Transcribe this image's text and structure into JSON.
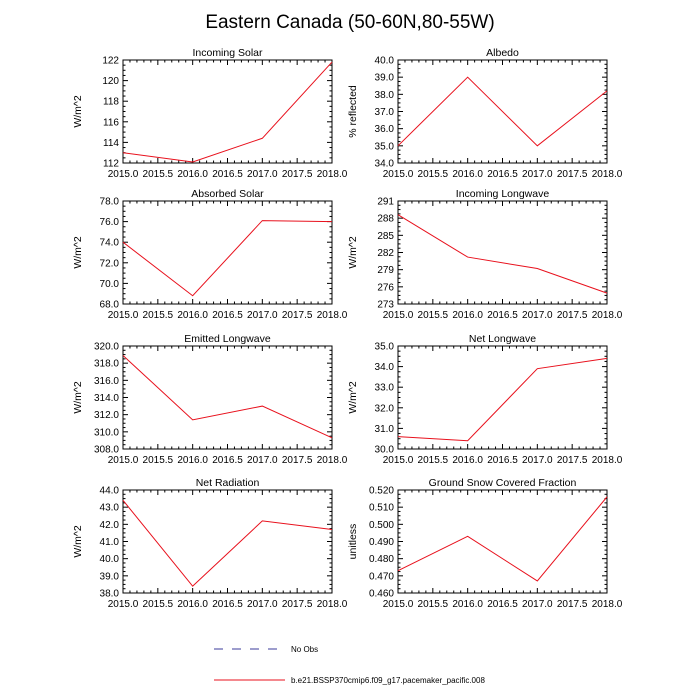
{
  "figure": {
    "title": "Eastern Canada (50-60N,80-55W)"
  },
  "legend": {
    "obs_label": "No Obs",
    "obs_color": "#3b3b9b",
    "model_label": "b.e21.BSSP370cmip6.f09_g17.pacemaker_pacific.008",
    "model_color": "#e8101c"
  },
  "chart_data": [
    {
      "type": "line",
      "title": "Incoming Solar",
      "ylabel": "W/m^2",
      "x": [
        2015,
        2016,
        2017,
        2018
      ],
      "values": [
        113.0,
        112.1,
        114.4,
        121.8
      ],
      "xlim": [
        2015,
        2018
      ],
      "ylim": [
        112,
        122
      ],
      "yticks": [
        "112",
        "114",
        "116",
        "118",
        "120",
        "122"
      ],
      "xticks": [
        "2015.0",
        "2015.5",
        "2016.0",
        "2016.5",
        "2017.0",
        "2017.5",
        "2018.0"
      ]
    },
    {
      "type": "line",
      "title": "Albedo",
      "ylabel": "% reflected",
      "x": [
        2015,
        2016,
        2017,
        2018
      ],
      "values": [
        35.0,
        39.0,
        35.0,
        38.2
      ],
      "xlim": [
        2015,
        2018
      ],
      "ylim": [
        34,
        40
      ],
      "yticks": [
        "34.0",
        "35.0",
        "36.0",
        "37.0",
        "38.0",
        "39.0",
        "40.0"
      ],
      "xticks": [
        "2015.0",
        "2015.5",
        "2016.0",
        "2016.5",
        "2017.0",
        "2017.5",
        "2018.0"
      ]
    },
    {
      "type": "line",
      "title": "Absorbed Solar",
      "ylabel": "W/m^2",
      "x": [
        2015,
        2016,
        2017,
        2018
      ],
      "values": [
        74.0,
        68.8,
        76.1,
        76.0
      ],
      "xlim": [
        2015,
        2018
      ],
      "ylim": [
        68,
        78
      ],
      "yticks": [
        "68.0",
        "70.0",
        "72.0",
        "74.0",
        "76.0",
        "78.0"
      ],
      "xticks": [
        "2015.0",
        "2015.5",
        "2016.0",
        "2016.5",
        "2017.0",
        "2017.5",
        "2018.0"
      ]
    },
    {
      "type": "line",
      "title": "Incoming Longwave",
      "ylabel": "W/m^2",
      "x": [
        2015,
        2016,
        2017,
        2018
      ],
      "values": [
        288.6,
        281.2,
        279.2,
        274.9
      ],
      "xlim": [
        2015,
        2018
      ],
      "ylim": [
        273,
        291
      ],
      "yticks": [
        "273",
        "276",
        "279",
        "282",
        "285",
        "288",
        "291"
      ],
      "xticks": [
        "2015.0",
        "2015.5",
        "2016.0",
        "2016.5",
        "2017.0",
        "2017.5",
        "2018.0"
      ]
    },
    {
      "type": "line",
      "title": "Emitted Longwave",
      "ylabel": "W/m^2",
      "x": [
        2015,
        2016,
        2017,
        2018
      ],
      "values": [
        318.9,
        311.4,
        313.0,
        309.3
      ],
      "xlim": [
        2015,
        2018
      ],
      "ylim": [
        308,
        320
      ],
      "yticks": [
        "308.0",
        "310.0",
        "312.0",
        "314.0",
        "316.0",
        "318.0",
        "320.0"
      ],
      "xticks": [
        "2015.0",
        "2015.5",
        "2016.0",
        "2016.5",
        "2017.0",
        "2017.5",
        "2018.0"
      ]
    },
    {
      "type": "line",
      "title": "Net Longwave",
      "ylabel": "W/m^2",
      "x": [
        2015,
        2016,
        2017,
        2018
      ],
      "values": [
        30.6,
        30.4,
        33.9,
        34.4
      ],
      "xlim": [
        2015,
        2018
      ],
      "ylim": [
        30,
        35
      ],
      "yticks": [
        "30.0",
        "31.0",
        "32.0",
        "33.0",
        "34.0",
        "35.0"
      ],
      "xticks": [
        "2015.0",
        "2015.5",
        "2016.0",
        "2016.5",
        "2017.0",
        "2017.5",
        "2018.0"
      ]
    },
    {
      "type": "line",
      "title": "Net Radiation",
      "ylabel": "W/m^2",
      "x": [
        2015,
        2016,
        2017,
        2018
      ],
      "values": [
        43.4,
        38.4,
        42.2,
        41.7
      ],
      "xlim": [
        2015,
        2018
      ],
      "ylim": [
        38,
        44
      ],
      "yticks": [
        "38.0",
        "39.0",
        "40.0",
        "41.0",
        "42.0",
        "43.0",
        "44.0"
      ],
      "xticks": [
        "2015.0",
        "2015.5",
        "2016.0",
        "2016.5",
        "2017.0",
        "2017.5",
        "2018.0"
      ]
    },
    {
      "type": "line",
      "title": "Ground Snow Covered Fraction",
      "ylabel": "unitless",
      "x": [
        2015,
        2016,
        2017,
        2018
      ],
      "values": [
        0.473,
        0.493,
        0.467,
        0.516
      ],
      "xlim": [
        2015,
        2018
      ],
      "ylim": [
        0.46,
        0.52
      ],
      "yticks": [
        "0.460",
        "0.470",
        "0.480",
        "0.490",
        "0.500",
        "0.510",
        "0.520"
      ],
      "xticks": [
        "2015.0",
        "2015.5",
        "2016.0",
        "2016.5",
        "2017.0",
        "2017.5",
        "2018.0"
      ]
    }
  ]
}
